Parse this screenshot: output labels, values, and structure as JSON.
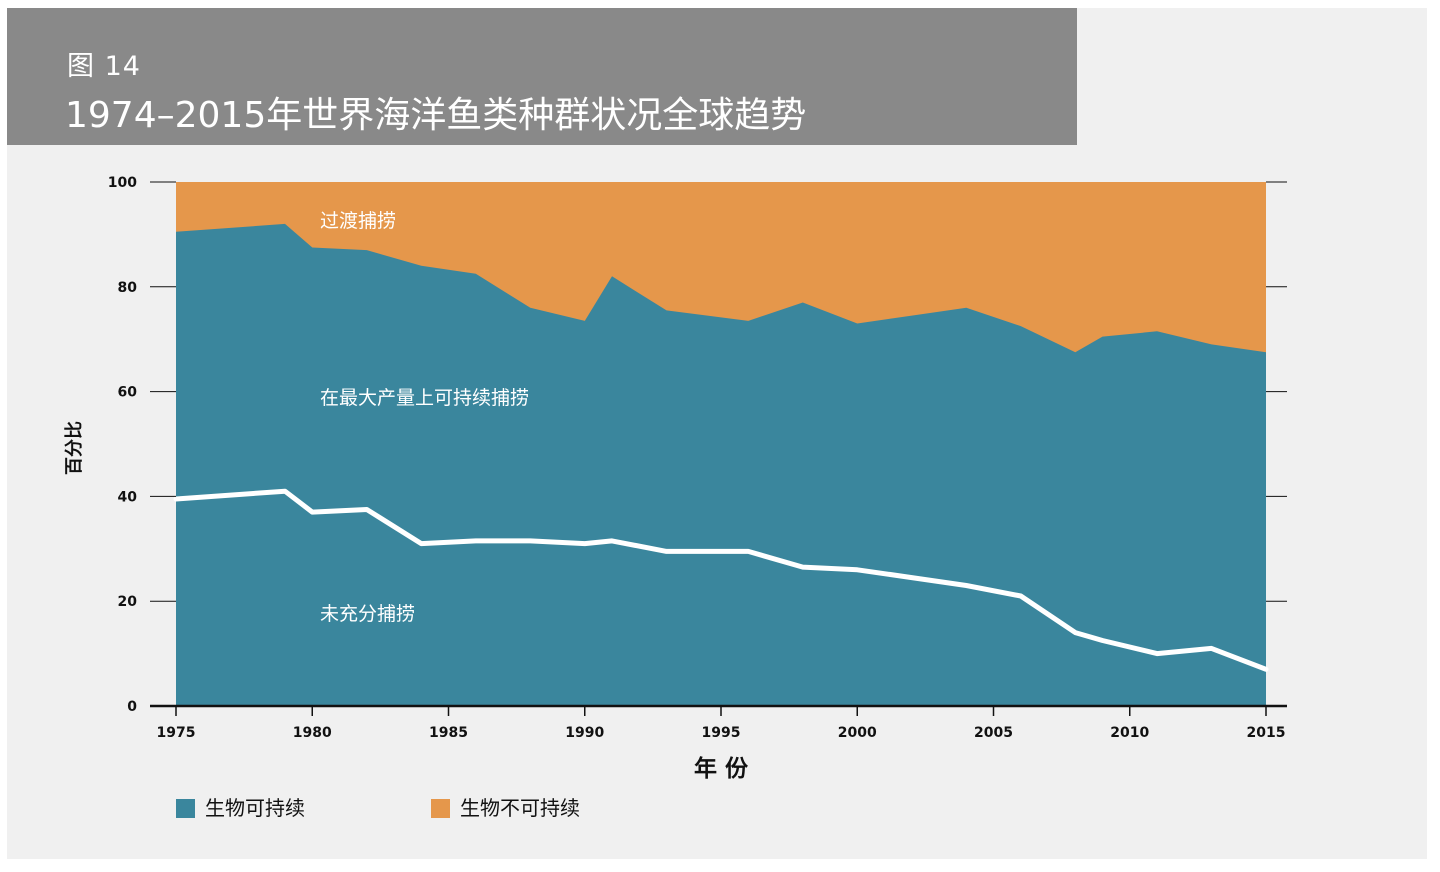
{
  "figure": {
    "label": "图 14",
    "title": "1974–2015年世界海洋鱼类种群状况全球趋势"
  },
  "colors": {
    "sustainable": "#3a869d",
    "unsustainable": "#e5974b",
    "underfished_line": "#ffffff",
    "axis": "#111111"
  },
  "chart_data": {
    "type": "area",
    "title": "1974–2015年世界海洋鱼类种群状况全球趋势",
    "xlabel": "年 份",
    "ylabel": "百分比",
    "xlim": [
      1975,
      2015
    ],
    "ylim": [
      0,
      100
    ],
    "x_ticks": [
      1975,
      1980,
      1985,
      1990,
      1995,
      2000,
      2005,
      2010,
      2015
    ],
    "y_ticks": [
      0,
      20,
      40,
      60,
      80,
      100
    ],
    "legend_position": "bottom-left",
    "legend": [
      "生物可持续",
      "生物不可持续"
    ],
    "region_labels": [
      "过渡捕捞",
      "在最大产量上可持续捕捞",
      "未充分捕捞"
    ],
    "x": [
      1975,
      1979,
      1980,
      1982,
      1984,
      1986,
      1988,
      1990,
      1991,
      1993,
      1996,
      1998,
      2000,
      2002,
      2004,
      2006,
      2008,
      2009,
      2011,
      2013,
      2015
    ],
    "sustainable_total": [
      90.5,
      92,
      87.5,
      87,
      84,
      82.5,
      76,
      73.5,
      82,
      75.5,
      73.5,
      77,
      73,
      74.5,
      76,
      72.5,
      67.5,
      70.5,
      71.5,
      69,
      67.5
    ],
    "underfished": [
      39.5,
      41,
      37,
      37.5,
      31,
      31.5,
      31.5,
      31,
      31.5,
      29.5,
      29.5,
      26.5,
      26,
      24.5,
      23,
      21,
      14,
      12.5,
      10,
      11,
      7
    ]
  }
}
